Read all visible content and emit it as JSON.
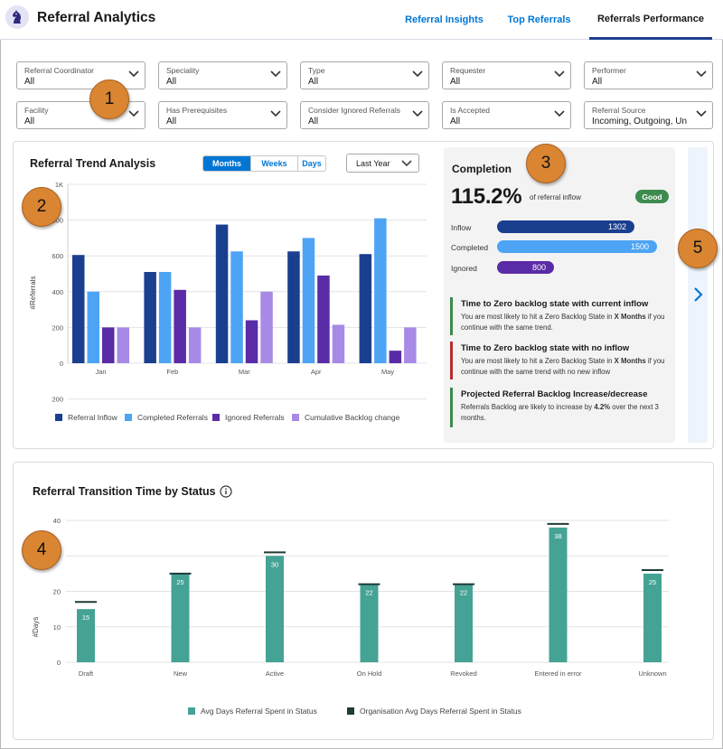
{
  "header": {
    "app_title": "Referral Analytics",
    "tabs": [
      {
        "label": "Referral Insights",
        "active": false
      },
      {
        "label": "Top Referrals",
        "active": false
      },
      {
        "label": "Referrals Performance",
        "active": true
      }
    ]
  },
  "filters": [
    {
      "label": "Referral Coordinator",
      "value": "All"
    },
    {
      "label": "Speciality",
      "value": "All"
    },
    {
      "label": "Type",
      "value": "All"
    },
    {
      "label": "Requester",
      "value": "All"
    },
    {
      "label": "Performer",
      "value": "All"
    },
    {
      "label": "Facility",
      "value": "All"
    },
    {
      "label": "Has Prerequisites",
      "value": "All"
    },
    {
      "label": "Consider Ignored Referrals",
      "value": "All"
    },
    {
      "label": "Is Accepted",
      "value": "All"
    },
    {
      "label": "Referral Source",
      "value": "Incoming, Outgoing, Un"
    }
  ],
  "trend": {
    "title": "Referral Trend Analysis",
    "period_tabs": [
      "Months",
      "Weeks",
      "Days"
    ],
    "selected_period": "Months",
    "range_select": "Last Year"
  },
  "completion": {
    "title": "Completion",
    "percent": "115.2%",
    "subtitle": "of referral inflow",
    "badge": "Good",
    "metrics": [
      {
        "label": "Inflow",
        "value": "1302",
        "color": "#1b3f8f"
      },
      {
        "label": "Completed",
        "value": "1500",
        "color": "#4ea4f4"
      },
      {
        "label": "Ignored",
        "value": "800",
        "color": "#5a2ba6"
      }
    ],
    "insights": [
      {
        "title": "Time to Zero backlog state with current inflow",
        "text_before": "You are most likely to hit a Zero Backlog State in ",
        "bold": "X Months",
        "text_after": " if you continue with the same trend.",
        "tone": "green"
      },
      {
        "title": "Time to Zero backlog state with no inflow",
        "text_before": "You are most likely to hit a Zero Backlog State in ",
        "bold": "X Months",
        "text_after": " if you continue with the same trend with no new inflow",
        "tone": "red"
      },
      {
        "title": "Projected Referral Backlog Increase/decrease",
        "text_before": "Referrals Backlog are likely to increase by ",
        "bold": "4.2%",
        "text_after": " over the next 3 months.",
        "tone": "green"
      }
    ]
  },
  "transition": {
    "title": "Referral Transition Time by Status"
  },
  "markers": [
    "1",
    "2",
    "3",
    "4",
    "5"
  ],
  "icons": {
    "logo": "knight-chess-icon",
    "next": "chevron-right-icon",
    "info": "info-icon"
  },
  "colors": {
    "inflow": "#1b3f8f",
    "completed": "#4ea4f4",
    "ignored": "#5a2ba6",
    "backlog": "#a88ae6",
    "avg": "#45a395",
    "org_avg": "#1f3b37",
    "accent": "#0176d3"
  },
  "chart_data": [
    {
      "type": "bar",
      "categories": [
        "Jan",
        "Feb",
        "Mar",
        "Apr",
        "May"
      ],
      "ylabel": "#Referrals",
      "ylim": [
        -200,
        1000
      ],
      "yticks": [
        "1K",
        "800",
        "600",
        "400",
        "200",
        "0",
        "200"
      ],
      "legend_position": "bottom",
      "series": [
        {
          "name": "Referral Inflow",
          "values": [
            605,
            510,
            775,
            625,
            610
          ]
        },
        {
          "name": "Completed Referrals",
          "values": [
            400,
            510,
            625,
            700,
            810
          ]
        },
        {
          "name": "Ignored Referrals",
          "values": [
            200,
            410,
            240,
            490,
            70
          ]
        },
        {
          "name": "Cumulative Backlog change",
          "values": [
            200,
            200,
            400,
            215,
            200
          ]
        }
      ]
    },
    {
      "type": "bar",
      "categories": [
        "Draft",
        "New",
        "Active",
        "On Hold",
        "Revoked",
        "Entered in error",
        "Unknown"
      ],
      "ylabel": "#Days",
      "ylim": [
        0,
        40
      ],
      "yticks": [
        "40",
        "30",
        "20",
        "10",
        "0"
      ],
      "legend_position": "bottom",
      "series": [
        {
          "name": "Avg Days Referral Spent in Status",
          "values": [
            15,
            25,
            30,
            22,
            22,
            38,
            25
          ]
        },
        {
          "name": "Organisation Avg Days Referral Spent in Status",
          "values": [
            17,
            25,
            31,
            22,
            22,
            39,
            26
          ]
        }
      ]
    }
  ]
}
